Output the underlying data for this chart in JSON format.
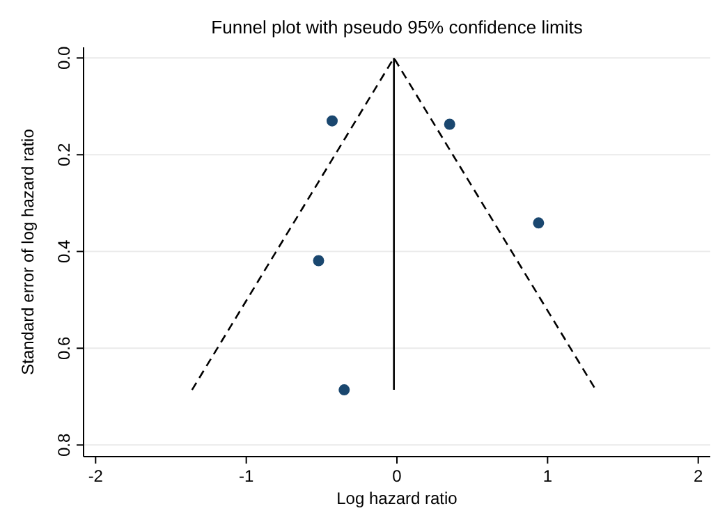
{
  "chart_data": {
    "type": "scatter",
    "title": "Funnel plot with pseudo 95% confidence limits",
    "xlabel": "Log hazard ratio",
    "ylabel": "Standard error of log hazard ratio",
    "xlim": [
      -2.08,
      2.08
    ],
    "ylim": [
      0.824,
      -0.022
    ],
    "xticks": [
      -2,
      -1,
      0,
      1,
      2
    ],
    "yticks": [
      {
        "value": 0,
        "label": "0.0"
      },
      0.2,
      0.4,
      0.6,
      0.8
    ],
    "grid": "y",
    "x": [
      -0.43,
      0.35,
      0.94,
      -0.52,
      -0.35
    ],
    "series": [
      {
        "color": "#1a476f",
        "marker": "circle",
        "values": [
          0.13,
          0.137,
          0.341,
          0.419,
          0.686
        ]
      },
      {
        "type": "line",
        "line_style": "dashed",
        "marker": "none",
        "color": "#000000",
        "x": [
          -1.36,
          -0.02,
          1.32
        ],
        "values": [
          0.686,
          0,
          0.686
        ]
      },
      {
        "type": "line",
        "line_style": "solid",
        "marker": "none",
        "color": "#000000",
        "x": [
          -0.02,
          -0.02
        ],
        "values": [
          0,
          0.686
        ]
      }
    ]
  }
}
